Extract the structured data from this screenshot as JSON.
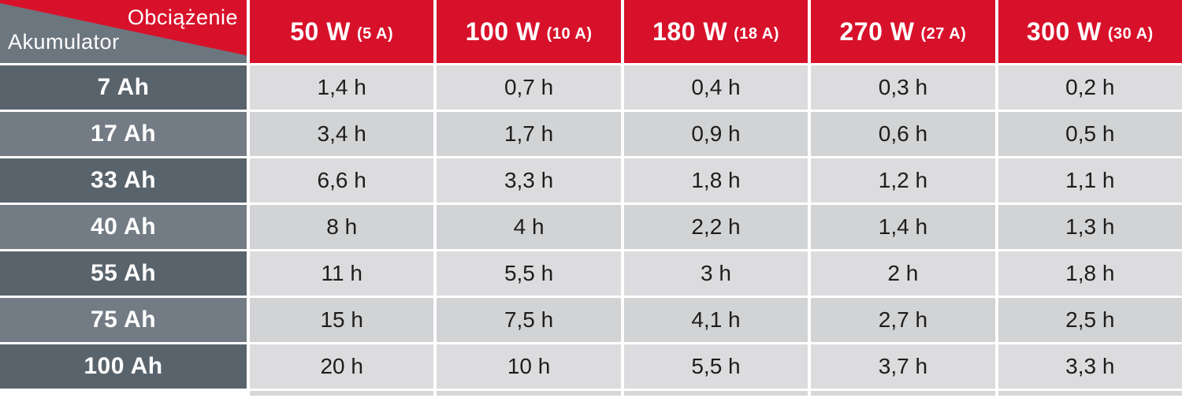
{
  "table": {
    "corner": {
      "top_label": "Obciążenie",
      "bottom_label": "Akumulator"
    },
    "columns": [
      {
        "power": "50 W",
        "current": "(5 A)"
      },
      {
        "power": "100 W",
        "current": "(10 A)"
      },
      {
        "power": "180 W",
        "current": "(18 A)"
      },
      {
        "power": "270 W",
        "current": "(27 A)"
      },
      {
        "power": "300 W",
        "current": "(30 A)"
      }
    ],
    "rows": [
      {
        "battery": "7 Ah",
        "values": [
          "1,4 h",
          "0,7 h",
          "0,4 h",
          "0,3 h",
          "0,2 h"
        ]
      },
      {
        "battery": "17 Ah",
        "values": [
          "3,4 h",
          "1,7 h",
          "0,9 h",
          "0,6 h",
          "0,5 h"
        ]
      },
      {
        "battery": "33 Ah",
        "values": [
          "6,6 h",
          "3,3 h",
          "1,8 h",
          "1,2 h",
          "1,1 h"
        ]
      },
      {
        "battery": "40 Ah",
        "values": [
          "8 h",
          "4 h",
          "2,2 h",
          "1,4 h",
          "1,3 h"
        ]
      },
      {
        "battery": "55 Ah",
        "values": [
          "11 h",
          "5,5 h",
          "3 h",
          "2 h",
          "1,8 h"
        ]
      },
      {
        "battery": "75 Ah",
        "values": [
          "15 h",
          "7,5 h",
          "4,1 h",
          "2,7 h",
          "2,5 h"
        ]
      },
      {
        "battery": "100 Ah",
        "values": [
          "20 h",
          "10 h",
          "5,5 h",
          "3,7 h",
          "3,3 h"
        ]
      }
    ],
    "colors": {
      "accent_red": "#d8112b",
      "slate_dark": "#59636c",
      "slate_light": "#737c85",
      "cell_light": "#dcdcde",
      "cell_alt": "#d2d3d5",
      "text_dark": "#1d1d1b",
      "text_light": "#ffffff"
    }
  },
  "chart_data": {
    "type": "table",
    "title": "",
    "col_header_label": "Obciążenie",
    "row_header_label": "Akumulator",
    "columns": [
      "50 W (5 A)",
      "100 W (10 A)",
      "180 W (18 A)",
      "270 W (27 A)",
      "300 W (30 A)"
    ],
    "rows": [
      "7 Ah",
      "17 Ah",
      "33 Ah",
      "40 Ah",
      "55 Ah",
      "75 Ah",
      "100 Ah"
    ],
    "values_hours": [
      [
        1.4,
        0.7,
        0.4,
        0.3,
        0.2
      ],
      [
        3.4,
        1.7,
        0.9,
        0.6,
        0.5
      ],
      [
        6.6,
        3.3,
        1.8,
        1.2,
        1.1
      ],
      [
        8,
        4,
        2.2,
        1.4,
        1.3
      ],
      [
        11,
        5.5,
        3,
        2,
        1.8
      ],
      [
        15,
        7.5,
        4.1,
        2.7,
        2.5
      ],
      [
        20,
        10,
        5.5,
        3.7,
        3.3
      ]
    ],
    "units": "h",
    "decimal_separator": ","
  }
}
